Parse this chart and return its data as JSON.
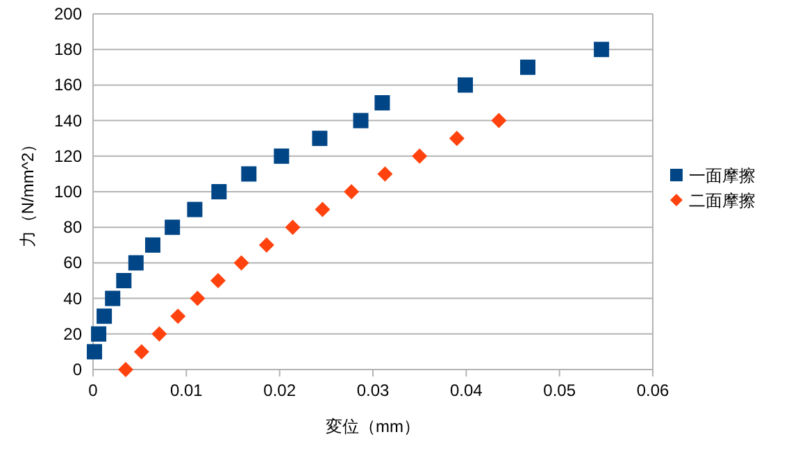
{
  "chart_data": {
    "type": "scatter",
    "xlabel": "変位（mm）",
    "ylabel": "力（N/mm^2）",
    "xlim": [
      0,
      0.06
    ],
    "ylim": [
      0,
      200
    ],
    "xticks": [
      0,
      0.01,
      0.02,
      0.03,
      0.04,
      0.05,
      0.06
    ],
    "yticks": [
      0,
      20,
      40,
      60,
      80,
      100,
      120,
      140,
      160,
      180,
      200
    ],
    "grid": "y",
    "legend": "right",
    "series": [
      {
        "name": "一面摩擦",
        "color": "#004586",
        "marker": "square",
        "x": [
          0.00015,
          0.0006,
          0.0012,
          0.0021,
          0.0033,
          0.0046,
          0.0064,
          0.0085,
          0.0109,
          0.0135,
          0.0167,
          0.0202,
          0.0243,
          0.0287,
          0.031,
          0.0399,
          0.0466,
          0.0545
        ],
        "values": [
          10,
          20,
          30,
          40,
          50,
          60,
          70,
          80,
          90,
          100,
          110,
          120,
          130,
          140,
          150,
          160,
          170,
          180
        ]
      },
      {
        "name": "二面摩擦",
        "color": "#ff420e",
        "marker": "diamond",
        "x": [
          0.0035,
          0.0052,
          0.0071,
          0.0091,
          0.0112,
          0.0134,
          0.0159,
          0.0186,
          0.0214,
          0.0246,
          0.0277,
          0.0313,
          0.035,
          0.039,
          0.0435
        ],
        "values": [
          0,
          10,
          20,
          30,
          40,
          50,
          60,
          70,
          80,
          90,
          100,
          110,
          120,
          130,
          140
        ]
      }
    ]
  }
}
